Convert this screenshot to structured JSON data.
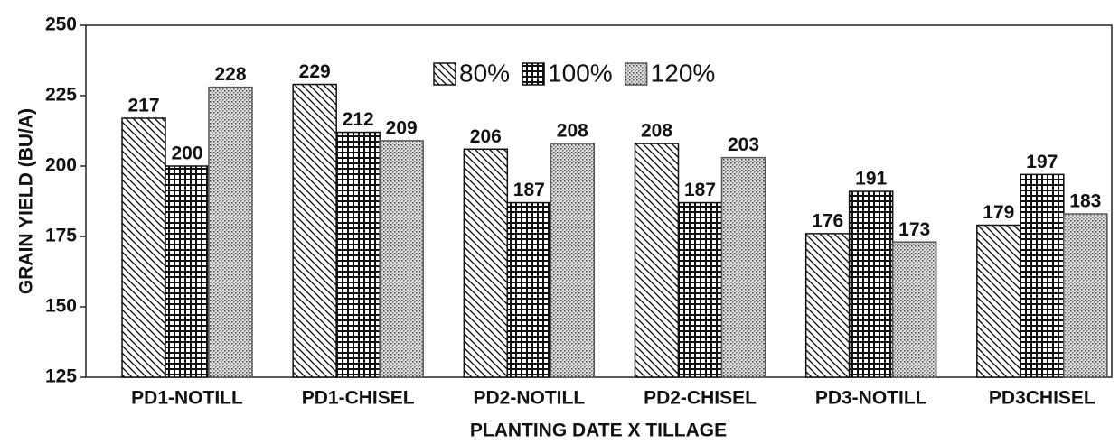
{
  "chart_data": {
    "type": "bar",
    "x_label": "PLANTING DATE X TILLAGE",
    "y_label": "GRAIN YIELD (BU/A)",
    "categories": [
      "PD1-NOTILL",
      "PD1-CHISEL",
      "PD2-NOTILL",
      "PD2-CHISEL",
      "PD3-NOTILL",
      "PD3CHISEL"
    ],
    "series": [
      {
        "name": "80%",
        "color": "#111111",
        "pattern": "diagonal",
        "values": [
          217,
          229,
          206,
          208,
          176,
          179
        ]
      },
      {
        "name": "100%",
        "color": "#111111",
        "pattern": "crosshatch",
        "values": [
          200,
          212,
          187,
          187,
          191,
          197
        ]
      },
      {
        "name": "120%",
        "color": "#555555",
        "pattern": "stipple",
        "values": [
          228,
          209,
          208,
          203,
          173,
          183
        ]
      }
    ],
    "ylim": [
      125,
      250
    ],
    "yticks": [
      125,
      150,
      175,
      200,
      225,
      250
    ],
    "legend": "top"
  }
}
